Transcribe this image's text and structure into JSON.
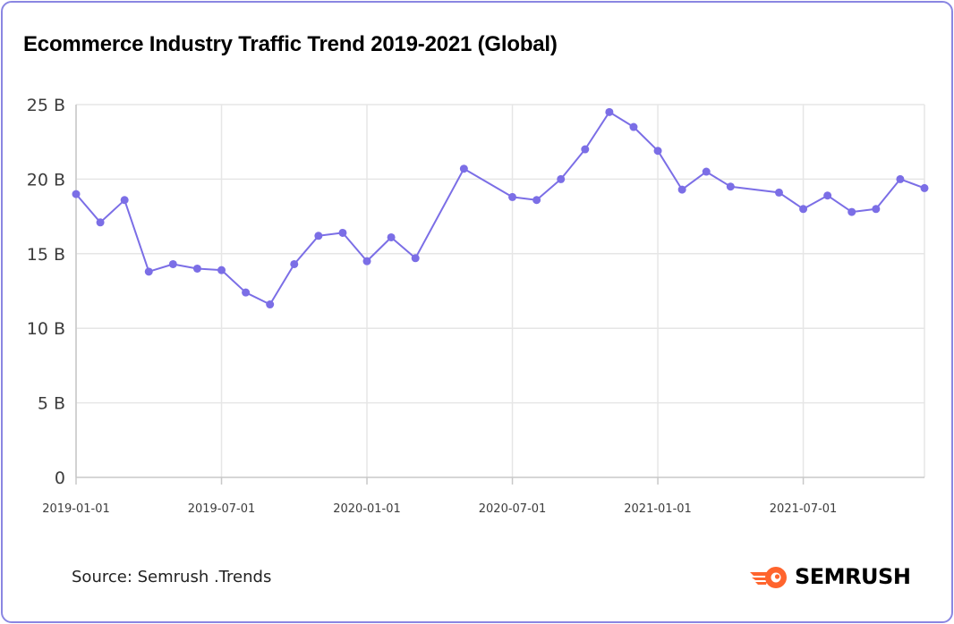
{
  "title": "Ecommerce Industry Traffic Trend 2019-2021 (Global)",
  "source": "Source: Semrush .Trends",
  "logo": {
    "text": "SEMRUSH",
    "icon": "semrush-flame-icon",
    "color": "#ff642d"
  },
  "colors": {
    "line": "#7b6ee6",
    "grid": "#e6e6e6",
    "axis": "#c8c8c8",
    "border": "#8a86e2"
  },
  "chart_data": {
    "type": "line",
    "title": "Ecommerce Industry Traffic Trend 2019-2021 (Global)",
    "xlabel": "",
    "ylabel": "",
    "x_ticks": [
      "2019-01-01",
      "2019-07-01",
      "2020-01-01",
      "2020-07-01",
      "2021-01-01",
      "2021-07-01"
    ],
    "y_ticks": [
      {
        "value": 0,
        "label": "0"
      },
      {
        "value": 5,
        "label": "5 B"
      },
      {
        "value": 10,
        "label": "10 B"
      },
      {
        "value": 15,
        "label": "15 B"
      },
      {
        "value": 20,
        "label": "20 B"
      },
      {
        "value": 25,
        "label": "25 B"
      }
    ],
    "ylim": [
      0,
      25
    ],
    "xlim": [
      "2019-01-01",
      "2021-12-01"
    ],
    "grid": true,
    "legend": "none",
    "series": [
      {
        "values": [
          {
            "x": "2019-01-01",
            "y": 19.0
          },
          {
            "x": "2019-02-01",
            "y": 17.1
          },
          {
            "x": "2019-03-01",
            "y": 18.6
          },
          {
            "x": "2019-04-01",
            "y": 13.8
          },
          {
            "x": "2019-05-01",
            "y": 14.3
          },
          {
            "x": "2019-06-01",
            "y": 14.0
          },
          {
            "x": "2019-07-01",
            "y": 13.9
          },
          {
            "x": "2019-08-01",
            "y": 12.4
          },
          {
            "x": "2019-09-01",
            "y": 11.6
          },
          {
            "x": "2019-10-01",
            "y": 14.3
          },
          {
            "x": "2019-11-01",
            "y": 16.2
          },
          {
            "x": "2019-12-01",
            "y": 16.4
          },
          {
            "x": "2020-01-01",
            "y": 14.5
          },
          {
            "x": "2020-02-01",
            "y": 16.1
          },
          {
            "x": "2020-03-01",
            "y": 14.7
          },
          {
            "x": "2020-05-01",
            "y": 20.7
          },
          {
            "x": "2020-07-01",
            "y": 18.8
          },
          {
            "x": "2020-08-01",
            "y": 18.6
          },
          {
            "x": "2020-09-01",
            "y": 20.0
          },
          {
            "x": "2020-10-01",
            "y": 22.0
          },
          {
            "x": "2020-11-01",
            "y": 24.5
          },
          {
            "x": "2020-12-01",
            "y": 23.5
          },
          {
            "x": "2021-01-01",
            "y": 21.9
          },
          {
            "x": "2021-02-01",
            "y": 19.3
          },
          {
            "x": "2021-03-01",
            "y": 20.5
          },
          {
            "x": "2021-04-01",
            "y": 19.5
          },
          {
            "x": "2021-06-01",
            "y": 19.1
          },
          {
            "x": "2021-07-01",
            "y": 18.0
          },
          {
            "x": "2021-08-01",
            "y": 18.9
          },
          {
            "x": "2021-09-01",
            "y": 17.8
          },
          {
            "x": "2021-10-01",
            "y": 18.0
          },
          {
            "x": "2021-11-01",
            "y": 20.0
          },
          {
            "x": "2021-12-01",
            "y": 19.4
          }
        ]
      }
    ]
  }
}
